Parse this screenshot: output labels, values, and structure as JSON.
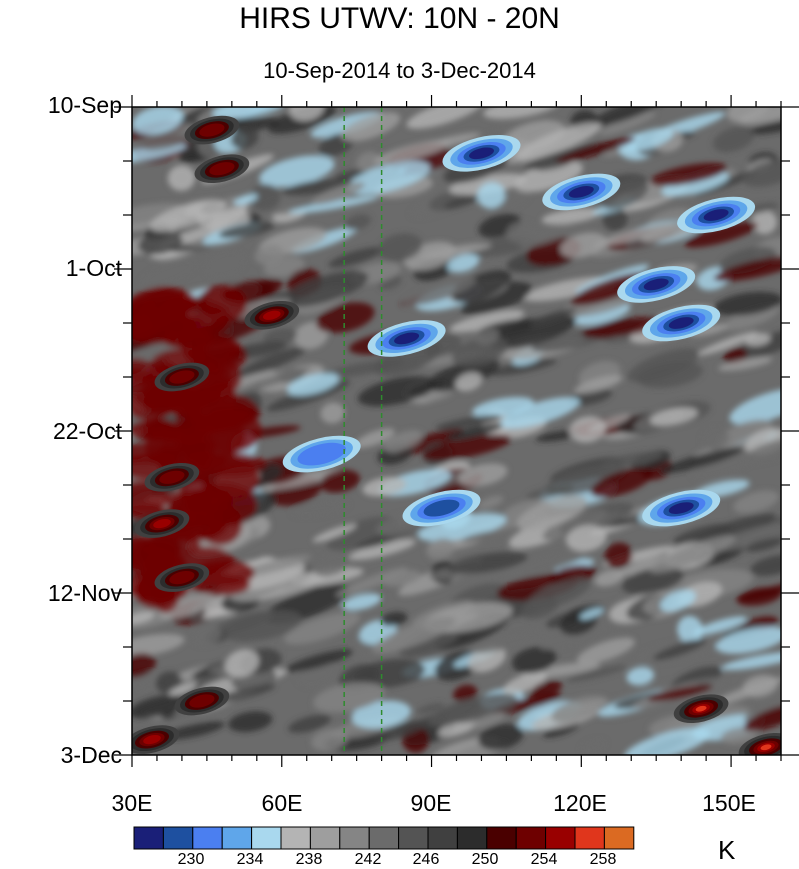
{
  "title": "HIRS UTWV: 10N - 20N",
  "subtitle": "10-Sep-2014 to 3-Dec-2014",
  "chart_data": {
    "type": "heatmap",
    "description_of_axes": null,
    "x_axis": {
      "range": [
        30,
        160
      ],
      "ticks": [
        30,
        60,
        90,
        120,
        150
      ],
      "tick_labels": [
        "30E",
        "60E",
        "90E",
        "120E",
        "150E"
      ]
    },
    "y_axis": {
      "range": [
        "2014-09-10",
        "2014-12-03"
      ],
      "direction": "top-to-bottom",
      "ticks": [
        "2014-09-10",
        "2014-10-01",
        "2014-10-22",
        "2014-11-12",
        "2014-12-03"
      ],
      "tick_labels": [
        "10-Sep",
        "1-Oct",
        "22-Oct",
        "12-Nov",
        "3-Dec"
      ]
    },
    "colorbar": {
      "levels": [
        228,
        230,
        232,
        234,
        236,
        238,
        240,
        242,
        244,
        246,
        248,
        250,
        252,
        254,
        256,
        258,
        260
      ],
      "labels": [
        "230",
        "234",
        "238",
        "242",
        "246",
        "250",
        "254",
        "258"
      ],
      "label_values": [
        230,
        234,
        238,
        242,
        246,
        250,
        254,
        258
      ],
      "units": "K",
      "colors": [
        "#1a1f78",
        "#1e50a0",
        "#4b7ff0",
        "#5fa6ea",
        "#a9d8ee",
        "#b4b4b4",
        "#9e9e9e",
        "#858585",
        "#6b6b6b",
        "#545454",
        "#404040",
        "#2c2c2c",
        "#4a0000",
        "#6e0000",
        "#990000",
        "#e0361c",
        "#db6a22"
      ]
    },
    "reference_lines": [
      {
        "x": 72.5,
        "style": "dashed",
        "color": "#2e8b2e"
      },
      {
        "x": 80,
        "style": "dashed",
        "color": "#2e8b2e"
      }
    ],
    "features": [
      {
        "lon": 100,
        "date": "2014-09-16",
        "value": 229
      },
      {
        "lon": 120,
        "date": "2014-09-21",
        "value": 230
      },
      {
        "lon": 147,
        "date": "2014-09-24",
        "value": 229
      },
      {
        "lon": 135,
        "date": "2014-10-03",
        "value": 231
      },
      {
        "lon": 140,
        "date": "2014-10-08",
        "value": 230
      },
      {
        "lon": 85,
        "date": "2014-10-10",
        "value": 230
      },
      {
        "lon": 68,
        "date": "2014-10-25",
        "value": 235
      },
      {
        "lon": 92,
        "date": "2014-11-01",
        "value": 233
      },
      {
        "lon": 140,
        "date": "2014-11-01",
        "value": 231
      },
      {
        "lon": 46,
        "date": "2014-09-13",
        "value": 256
      },
      {
        "lon": 48,
        "date": "2014-09-18",
        "value": 256
      },
      {
        "lon": 58,
        "date": "2014-10-07",
        "value": 258
      },
      {
        "lon": 40,
        "date": "2014-10-15",
        "value": 256
      },
      {
        "lon": 38,
        "date": "2014-10-28",
        "value": 256
      },
      {
        "lon": 36,
        "date": "2014-11-03",
        "value": 257
      },
      {
        "lon": 40,
        "date": "2014-11-10",
        "value": 255
      },
      {
        "lon": 44,
        "date": "2014-11-26",
        "value": 256
      },
      {
        "lon": 34,
        "date": "2014-12-01",
        "value": 258
      },
      {
        "lon": 144,
        "date": "2014-11-27",
        "value": 259
      },
      {
        "lon": 157,
        "date": "2014-12-02",
        "value": 260
      }
    ]
  }
}
